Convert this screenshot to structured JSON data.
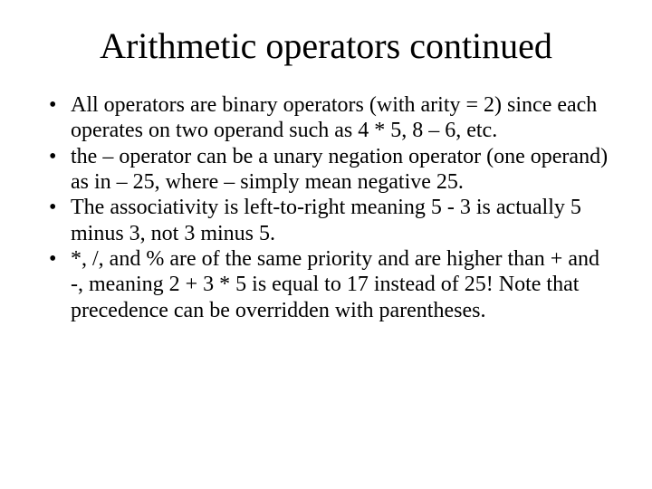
{
  "slide": {
    "title": "Arithmetic operators continued",
    "title_fontsize": 40,
    "body_fontsize": 24,
    "background_color": "#ffffff",
    "text_color": "#000000",
    "font_family": "Times New Roman",
    "bullets": [
      "All operators are binary operators (with arity = 2) since each operates on two operand such as 4 * 5, 8 – 6, etc.",
      "the – operator can be a unary negation operator (one operand) as in – 25, where – simply mean negative 25.",
      "The associativity is left-to-right meaning 5 - 3 is actually 5 minus 3, not 3 minus 5.",
      "*, /, and % are of the same priority and are higher than + and -, meaning 2 + 3 * 5 is equal to 17 instead of 25! Note that precedence can be overridden with parentheses."
    ]
  }
}
